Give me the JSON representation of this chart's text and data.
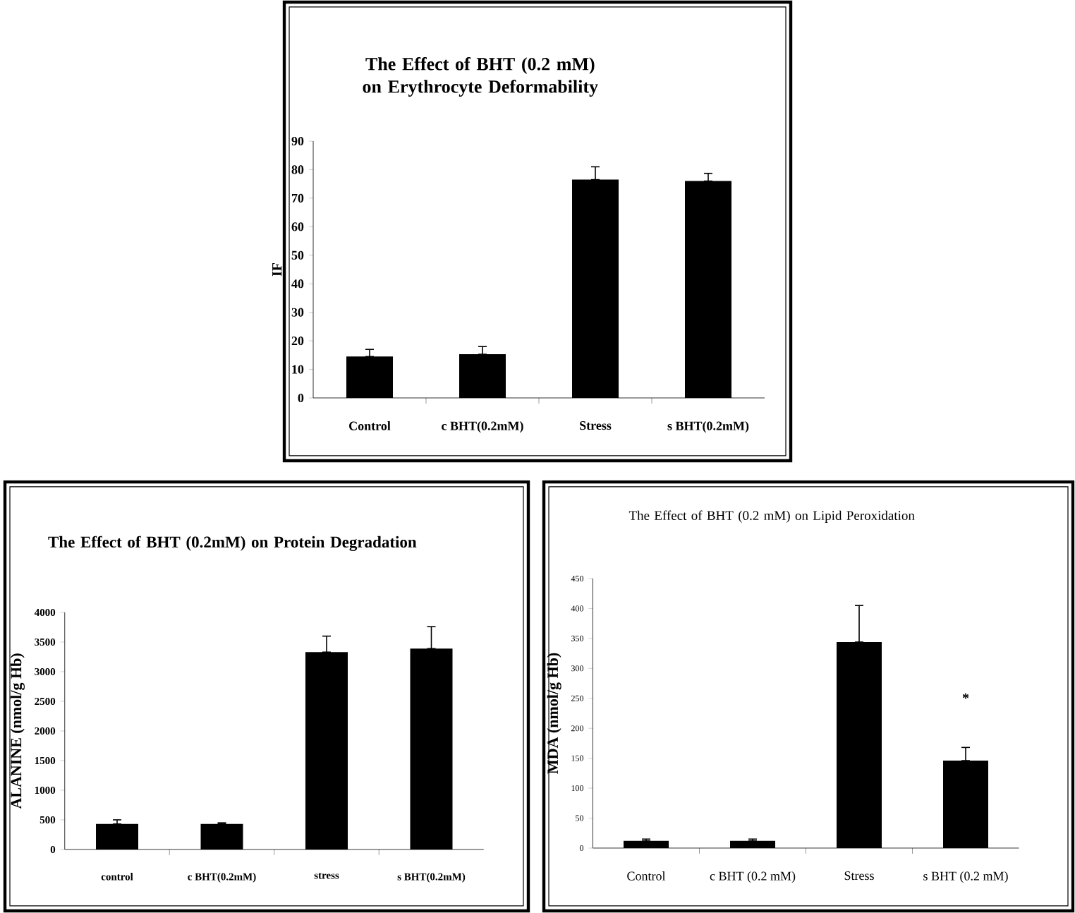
{
  "chart_data": [
    {
      "type": "bar",
      "title": "The Effect of BHT (0.2 mM) on Erythrocyte Deformability",
      "ylabel": "IF",
      "categories": [
        "Control",
        "c BHT(0.2mM)",
        "Stress",
        "s BHT(0.2mM)"
      ],
      "values": [
        14.5,
        15.3,
        76.5,
        76
      ],
      "errors": [
        [
          14.5,
          17
        ],
        [
          15.3,
          18
        ],
        [
          76.5,
          81
        ],
        [
          76,
          78.7
        ]
      ],
      "color": "#000000",
      "ylim": [
        0,
        90
      ],
      "yticks": [
        0,
        10,
        20,
        30,
        40,
        50,
        60,
        70,
        80,
        90
      ]
    },
    {
      "type": "bar",
      "title": "The Effect of BHT (0.2mM) on Protein Degradation",
      "ylabel": "ALANINE (nmol/g Hb)",
      "categories": [
        "control",
        "c BHT(0.2mM)",
        "stress",
        "s BHT(0.2mM)"
      ],
      "values": [
        430,
        430,
        3330,
        3390
      ],
      "errors": [
        [
          430,
          500
        ],
        [
          430,
          450
        ],
        [
          3330,
          3600
        ],
        [
          3390,
          3760
        ]
      ],
      "color": "#000000",
      "ylim": [
        0,
        4000
      ],
      "yticks": [
        0,
        500,
        1000,
        1500,
        2000,
        2500,
        3000,
        3500,
        4000
      ]
    },
    {
      "type": "bar",
      "title": "The Effect of BHT (0.2 mM) on Lipid Peroxidation",
      "ylabel": "MDA (nmol/g Hb)",
      "categories": [
        "Control",
        "c BHT (0.2 mM)",
        "Stress",
        "s BHT (0.2 mM)"
      ],
      "values": [
        12,
        12,
        344,
        146
      ],
      "errors": [
        [
          12,
          15
        ],
        [
          12,
          15
        ],
        [
          344,
          405
        ],
        [
          146,
          168
        ]
      ],
      "color": "#000000",
      "ylim": [
        0,
        450
      ],
      "yticks": [
        0,
        50,
        100,
        150,
        200,
        250,
        300,
        350,
        400,
        450
      ],
      "annotations": [
        "*"
      ]
    }
  ]
}
